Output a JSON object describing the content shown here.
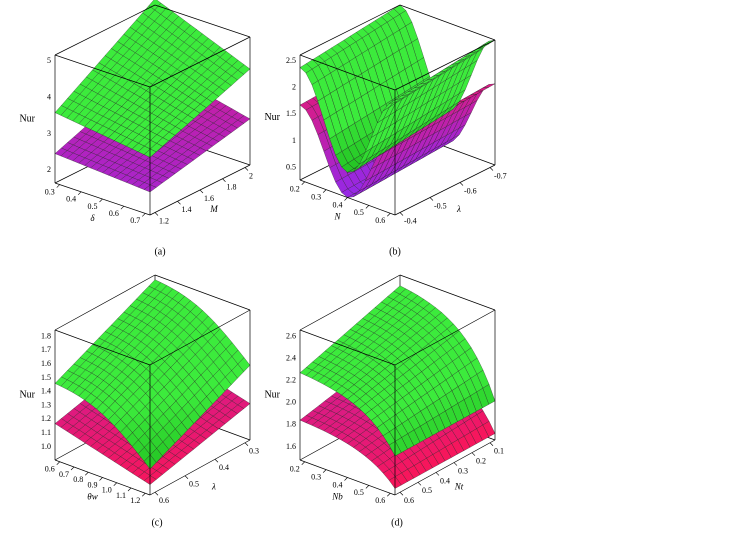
{
  "panels": [
    {
      "caption": "(a)",
      "z_label": "Nur",
      "x_label": "δ",
      "y_label": "M",
      "x_ticks": [
        "0.3",
        "0.4",
        "0.5",
        "0.6",
        "0.7"
      ],
      "y_ticks": [
        "1.2",
        "1.4",
        "1.6",
        "1.8",
        "2"
      ],
      "z_ticks": [
        "2",
        "3",
        "4",
        "5"
      ]
    },
    {
      "caption": "(b)",
      "z_label": "Nur",
      "x_label": "N",
      "y_label": "λ",
      "x_ticks": [
        "0.2",
        "0.3",
        "0.4",
        "0.5",
        "0.6"
      ],
      "y_ticks": [
        "-0.4",
        "-0.5",
        "-0.6",
        "-0.7"
      ],
      "z_ticks": [
        "0.5",
        "1",
        "1.5",
        "2",
        "2.5"
      ]
    },
    {
      "caption": "(c)",
      "z_label": "Nur",
      "x_label": "θw",
      "y_label": "λ",
      "x_ticks": [
        "0.6",
        "0.7",
        "0.8",
        "0.9",
        "1.0",
        "1.1",
        "1.2"
      ],
      "y_ticks": [
        "0.6",
        "0.5",
        "0.4",
        "0.3"
      ],
      "z_ticks": [
        "1.0",
        "1.1",
        "1.2",
        "1.3",
        "1.4",
        "1.5",
        "1.6",
        "1.7",
        "1.8"
      ]
    },
    {
      "caption": "(d)",
      "z_label": "Nur",
      "x_label": "Nb",
      "y_label": "Nt",
      "x_ticks": [
        "0.2",
        "0.3",
        "0.4",
        "0.5",
        "0.6"
      ],
      "y_ticks": [
        "0.6",
        "0.5",
        "0.4",
        "0.3",
        "0.2",
        "0.1"
      ],
      "z_ticks": [
        "1.6",
        "1.8",
        "2.0",
        "2.2",
        "2.4",
        "2.6"
      ]
    }
  ]
}
